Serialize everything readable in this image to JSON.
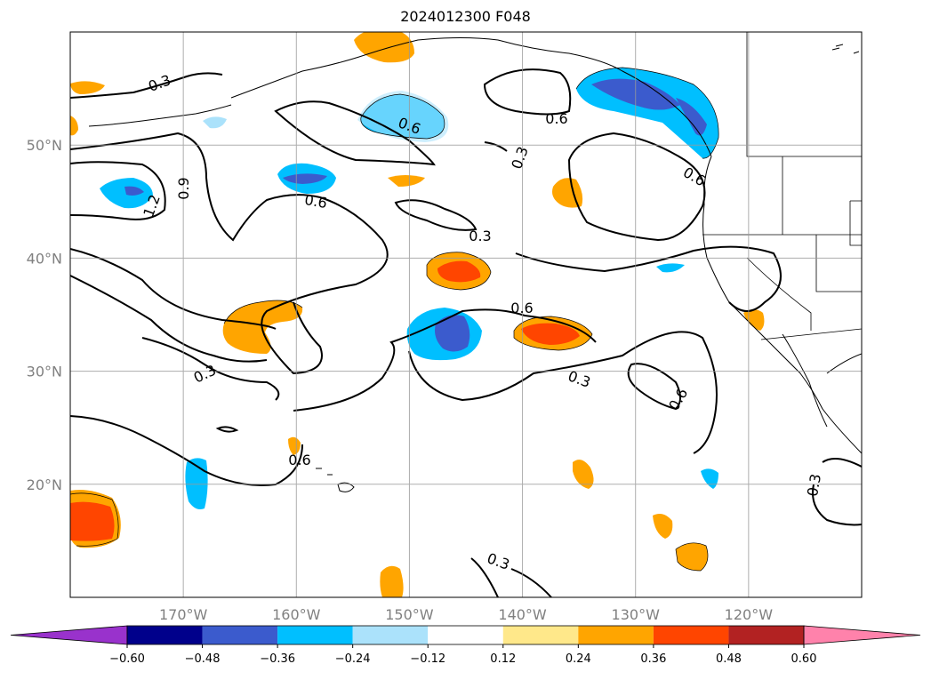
{
  "title": "2024012300 F048",
  "map": {
    "lon_range": [
      -180,
      -110
    ],
    "lat_range": [
      10,
      60
    ],
    "gridlines": true,
    "lat_labels": [
      "20°N",
      "30°N",
      "40°N",
      "50°N"
    ],
    "lon_labels": [
      "170°W",
      "160°W",
      "150°W",
      "140°W",
      "130°W",
      "120°W"
    ],
    "contour_levels": [
      0.3,
      0.6,
      0.9,
      1.2
    ],
    "contour_labels": [
      "0.3",
      "0.6",
      "0.6",
      "0.3",
      "0.6",
      "0.3",
      "1.2",
      "0.9",
      "0.6",
      "0.3",
      "0.6",
      "0.3",
      "0.6",
      "0.3",
      "0.3",
      "0.6"
    ]
  },
  "colorbar": {
    "extend": "both",
    "ticks": [
      "−0.60",
      "−0.48",
      "−0.36",
      "−0.24",
      "−0.12",
      "0.12",
      "0.24",
      "0.36",
      "0.48",
      "0.60"
    ],
    "colors": [
      "#9932cc",
      "#00008b",
      "#3b5bcd",
      "#00bfff",
      "#abe2fb",
      "#ffffff",
      "#ffe88a",
      "#ffa500",
      "#ff4500",
      "#b22222",
      "#ff82ab"
    ]
  }
}
